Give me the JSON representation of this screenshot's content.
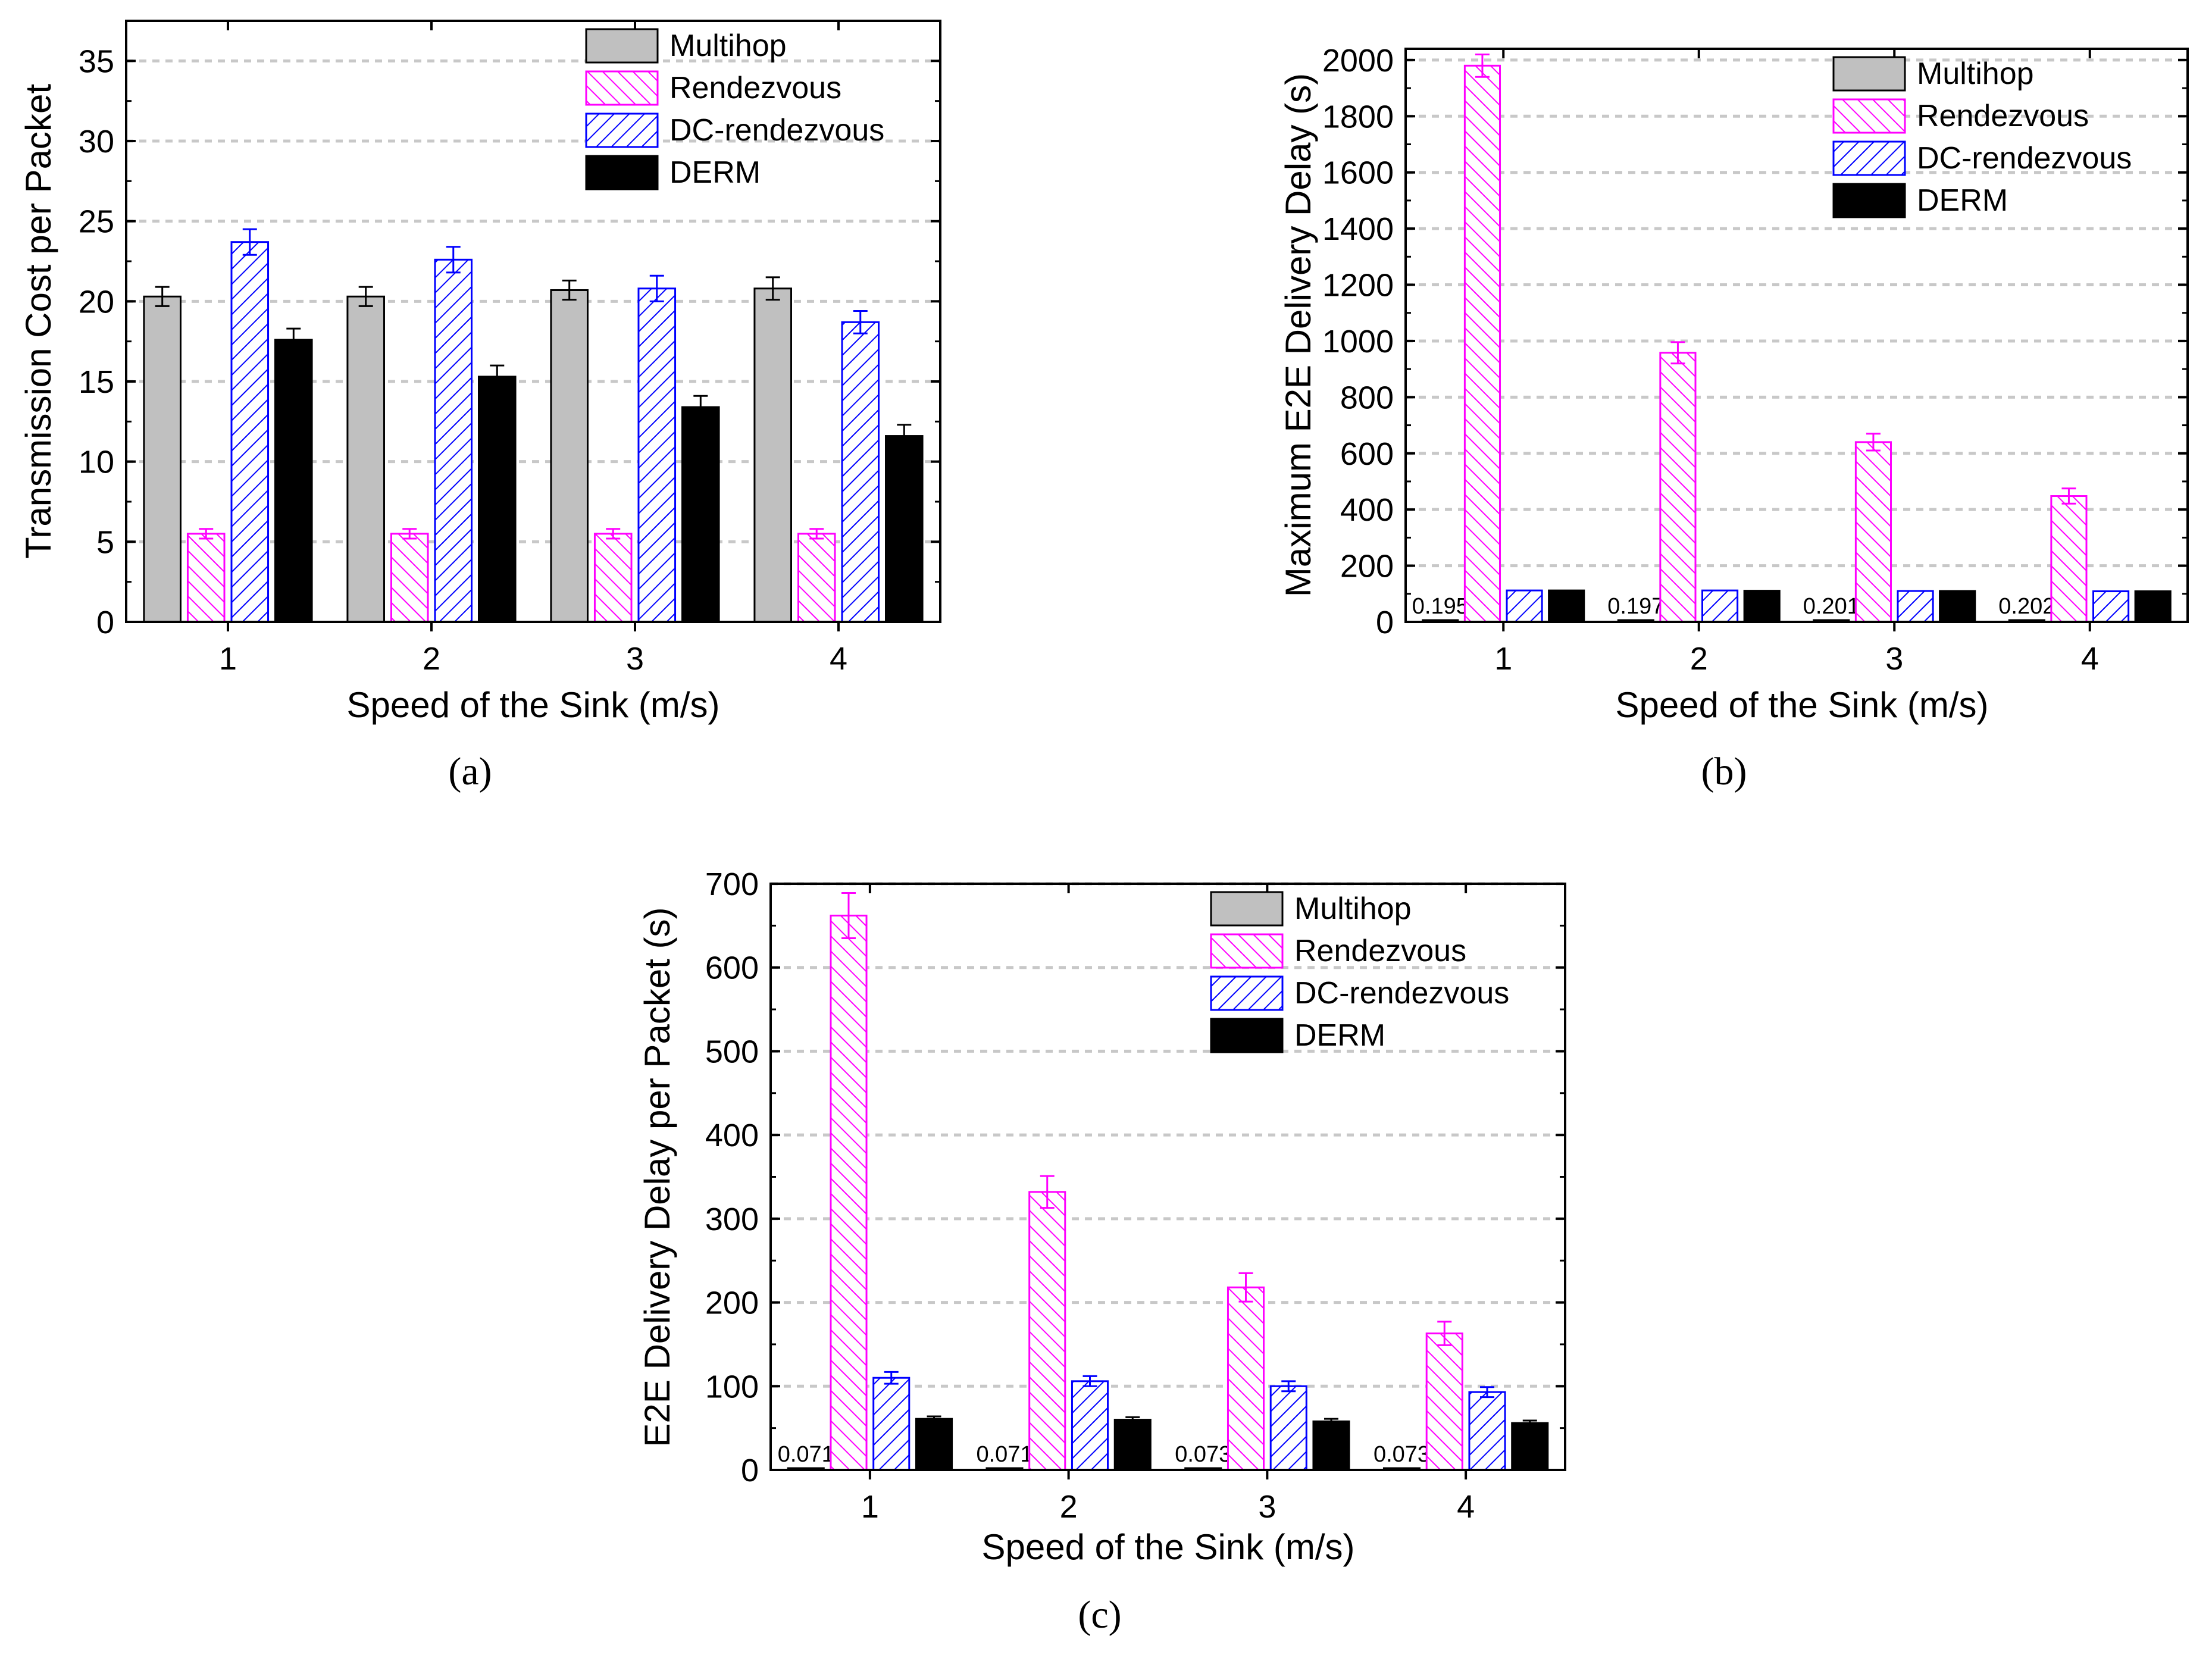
{
  "colors": {
    "Multihop": "#c0c0c0",
    "Rendezvous": "#ff00ff",
    "DC-rendezvous": "#0000ff",
    "DERM": "#000000",
    "gridline": "#c8c8c8"
  },
  "chart_data": [
    {
      "type": "bar",
      "panel_label": "a",
      "caption": "(a)",
      "title": "",
      "xlabel": "Speed of the Sink (m/s)",
      "ylabel": "Transmission Cost per Packet",
      "categories": [
        "1",
        "2",
        "3",
        "4"
      ],
      "ylim": [
        0,
        37.5
      ],
      "yticks": [
        0,
        5,
        10,
        15,
        20,
        25,
        30,
        35
      ],
      "grid": true,
      "legend_position": "top-right",
      "series": [
        {
          "name": "Multihop",
          "values": [
            20.3,
            20.3,
            20.7,
            20.8
          ],
          "errors": [
            0.6,
            0.6,
            0.6,
            0.7
          ],
          "bar_labels": []
        },
        {
          "name": "Rendezvous",
          "values": [
            5.5,
            5.5,
            5.5,
            5.5
          ],
          "errors": [
            0.3,
            0.3,
            0.3,
            0.3
          ],
          "bar_labels": []
        },
        {
          "name": "DC-rendezvous",
          "values": [
            23.7,
            22.6,
            20.8,
            18.7
          ],
          "errors": [
            0.8,
            0.8,
            0.8,
            0.7
          ],
          "bar_labels": []
        },
        {
          "name": "DERM",
          "values": [
            17.6,
            15.3,
            13.4,
            11.6
          ],
          "errors": [
            0.7,
            0.7,
            0.7,
            0.7
          ],
          "bar_labels": []
        }
      ]
    },
    {
      "type": "bar",
      "panel_label": "b",
      "caption": "(b)",
      "title": "",
      "xlabel": "Speed of the Sink (m/s)",
      "ylabel": "Maximum E2E Delivery Delay (s)",
      "categories": [
        "1",
        "2",
        "3",
        "4"
      ],
      "ylim": [
        0,
        2040
      ],
      "yticks": [
        0,
        200,
        400,
        600,
        800,
        1000,
        1200,
        1400,
        1600,
        1800,
        2000
      ],
      "grid": true,
      "legend_position": "top-right",
      "series": [
        {
          "name": "Multihop",
          "values": [
            0.195,
            0.197,
            0.201,
            0.202
          ],
          "errors": [
            0,
            0,
            0,
            0
          ],
          "bar_labels": [
            "0.195",
            "0.197",
            "0.201",
            "0.202"
          ]
        },
        {
          "name": "Rendezvous",
          "values": [
            1980,
            958,
            640,
            448
          ],
          "errors": [
            40,
            38,
            30,
            27
          ],
          "bar_labels": []
        },
        {
          "name": "DC-rendezvous",
          "values": [
            112,
            112,
            110,
            109
          ],
          "errors": [
            0,
            0,
            0,
            0
          ],
          "bar_labels": []
        },
        {
          "name": "DERM",
          "values": [
            112,
            111,
            110,
            109
          ],
          "errors": [
            0,
            0,
            0,
            0
          ],
          "bar_labels": []
        }
      ]
    },
    {
      "type": "bar",
      "panel_label": "c",
      "caption": "(c)",
      "title": "",
      "xlabel": "Speed of the Sink (m/s)",
      "ylabel": "E2E Delivery Delay per Packet (s)",
      "categories": [
        "1",
        "2",
        "3",
        "4"
      ],
      "ylim": [
        0,
        700
      ],
      "yticks": [
        0,
        100,
        200,
        300,
        400,
        500,
        600,
        700
      ],
      "grid": true,
      "legend_position": "top-right",
      "series": [
        {
          "name": "Multihop",
          "values": [
            0.071,
            0.071,
            0.073,
            0.073
          ],
          "errors": [
            0,
            0,
            0,
            0
          ],
          "bar_labels": [
            "0.071",
            "0.071",
            "0.073",
            "0.073"
          ]
        },
        {
          "name": "Rendezvous",
          "values": [
            662,
            332,
            218,
            163
          ],
          "errors": [
            27,
            19,
            17,
            14
          ],
          "bar_labels": []
        },
        {
          "name": "DC-rendezvous",
          "values": [
            110,
            106,
            100,
            93
          ],
          "errors": [
            7,
            6,
            6,
            6
          ],
          "bar_labels": []
        },
        {
          "name": "DERM",
          "values": [
            61,
            60,
            58,
            56
          ],
          "errors": [
            3,
            3,
            3,
            3
          ],
          "bar_labels": []
        }
      ]
    }
  ]
}
